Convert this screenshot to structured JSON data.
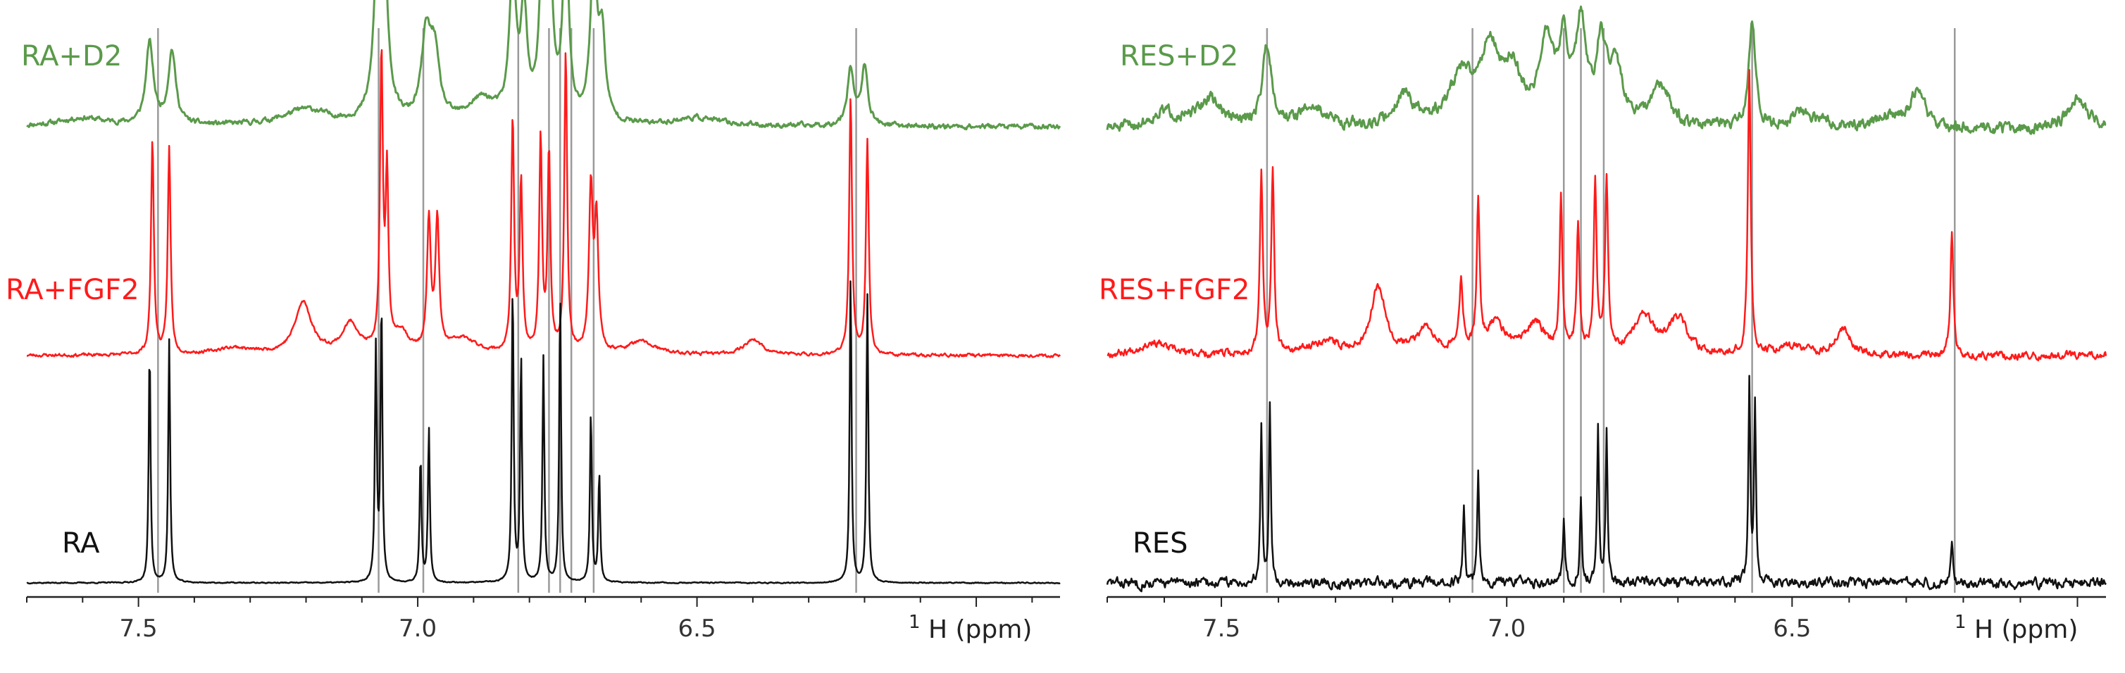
{
  "colors": {
    "D2": "#5a9a4a",
    "FGF2": "#ff1a1a",
    "free": "#111111",
    "guide": "#9a9a9a",
    "axis": "#222222"
  },
  "chart_data": [
    {
      "type": "line",
      "panel": "left",
      "xlabel_nucleus": "1",
      "xlabel_text": "H (ppm)",
      "xlim": [
        7.7,
        5.85
      ],
      "reverse_x": true,
      "ticks": [
        7.5,
        7.0,
        6.5
      ],
      "tick_labels": [
        "7.5",
        "7.0",
        "6.5"
      ],
      "guides": [
        7.465,
        7.07,
        6.99,
        6.82,
        6.765,
        6.745,
        6.725,
        6.685,
        6.215
      ],
      "series": [
        {
          "name": "RA+D2",
          "color": "#5a9a4a",
          "linewidth": 3,
          "baseline": 0.5,
          "scale": 0.9,
          "noise": 0.02,
          "seed": 11,
          "peaks": [
            [
              7.48,
              1.0,
              0.008
            ],
            [
              7.44,
              0.9,
              0.008
            ],
            [
              7.07,
              2.4,
              0.008
            ],
            [
              7.06,
              1.5,
              0.008
            ],
            [
              6.985,
              1.0,
              0.01
            ],
            [
              6.97,
              0.8,
              0.01
            ],
            [
              6.885,
              0.3,
              0.03
            ],
            [
              6.83,
              1.8,
              0.007
            ],
            [
              6.81,
              1.3,
              0.007
            ],
            [
              6.775,
              2.6,
              0.006
            ],
            [
              6.765,
              2.3,
              0.006
            ],
            [
              6.735,
              2.4,
              0.006
            ],
            [
              6.685,
              2.0,
              0.007
            ],
            [
              6.67,
              1.0,
              0.007
            ],
            [
              6.225,
              0.7,
              0.007
            ],
            [
              6.2,
              0.7,
              0.007
            ],
            [
              7.2,
              0.2,
              0.05
            ],
            [
              7.6,
              0.1,
              0.05
            ],
            [
              6.5,
              0.1,
              0.05
            ]
          ]
        },
        {
          "name": "RA+FGF2",
          "color": "#ff1a1a",
          "linewidth": 2.5,
          "baseline": 2.35,
          "scale": 0.95,
          "noise": 0.012,
          "seed": 23,
          "peaks": [
            [
              7.475,
              2.5,
              0.003
            ],
            [
              7.445,
              2.4,
              0.003
            ],
            [
              7.065,
              3.4,
              0.003
            ],
            [
              7.055,
              2.0,
              0.003
            ],
            [
              6.98,
              1.5,
              0.004
            ],
            [
              6.965,
              1.5,
              0.004
            ],
            [
              6.83,
              2.7,
              0.003
            ],
            [
              6.815,
              2.0,
              0.003
            ],
            [
              6.78,
              2.5,
              0.003
            ],
            [
              6.765,
              2.3,
              0.003
            ],
            [
              6.735,
              3.5,
              0.003
            ],
            [
              6.69,
              1.9,
              0.004
            ],
            [
              6.68,
              1.5,
              0.004
            ],
            [
              6.225,
              3.0,
              0.003
            ],
            [
              6.195,
              2.5,
              0.003
            ],
            [
              7.205,
              0.6,
              0.018
            ],
            [
              7.12,
              0.35,
              0.018
            ],
            [
              7.03,
              0.25,
              0.015
            ],
            [
              6.92,
              0.18,
              0.03
            ],
            [
              6.6,
              0.15,
              0.03
            ],
            [
              6.4,
              0.18,
              0.02
            ],
            [
              7.33,
              0.08,
              0.04
            ]
          ]
        },
        {
          "name": "RA",
          "color": "#111111",
          "linewidth": 2.5,
          "baseline": 4.05,
          "scale": 1.0,
          "noise": 0.004,
          "seed": 37,
          "peaks": [
            [
              7.48,
              2.6,
              0.002
            ],
            [
              7.445,
              2.7,
              0.002
            ],
            [
              7.075,
              2.6,
              0.002
            ],
            [
              7.065,
              3.1,
              0.002
            ],
            [
              6.995,
              1.4,
              0.002
            ],
            [
              6.98,
              1.7,
              0.002
            ],
            [
              6.83,
              3.3,
              0.002
            ],
            [
              6.815,
              2.5,
              0.002
            ],
            [
              6.775,
              2.5,
              0.002
            ],
            [
              6.745,
              3.2,
              0.002
            ],
            [
              6.69,
              1.9,
              0.002
            ],
            [
              6.675,
              1.2,
              0.002
            ],
            [
              6.225,
              3.4,
              0.002
            ],
            [
              6.195,
              3.2,
              0.002
            ]
          ]
        }
      ]
    },
    {
      "type": "line",
      "panel": "right",
      "xlabel_nucleus": "1",
      "xlabel_text": "H (ppm)",
      "xlim": [
        7.7,
        5.95
      ],
      "reverse_x": true,
      "ticks": [
        7.5,
        7.0,
        6.5
      ],
      "tick_labels": [
        "7.5",
        "7.0",
        "6.5"
      ],
      "guides": [
        7.42,
        7.06,
        6.9,
        6.87,
        6.83,
        6.57,
        6.215
      ],
      "series": [
        {
          "name": "RES+D2",
          "color": "#5a9a4a",
          "linewidth": 3,
          "baseline": 0.5,
          "scale": 0.9,
          "noise": 0.045,
          "seed": 51,
          "peaks": [
            [
              7.42,
              1.0,
              0.01
            ],
            [
              7.6,
              0.2,
              0.03
            ],
            [
              7.52,
              0.35,
              0.025
            ],
            [
              7.34,
              0.25,
              0.03
            ],
            [
              7.18,
              0.4,
              0.02
            ],
            [
              7.08,
              0.6,
              0.025
            ],
            [
              7.03,
              0.9,
              0.02
            ],
            [
              6.99,
              0.6,
              0.02
            ],
            [
              6.93,
              1.0,
              0.015
            ],
            [
              6.9,
              0.9,
              0.01
            ],
            [
              6.87,
              1.2,
              0.01
            ],
            [
              6.835,
              0.9,
              0.01
            ],
            [
              6.81,
              0.7,
              0.015
            ],
            [
              6.73,
              0.5,
              0.02
            ],
            [
              6.57,
              1.3,
              0.007
            ],
            [
              6.48,
              0.2,
              0.03
            ],
            [
              6.33,
              0.15,
              0.03
            ],
            [
              6.28,
              0.45,
              0.015
            ],
            [
              6.0,
              0.4,
              0.02
            ]
          ]
        },
        {
          "name": "RES+FGF2",
          "color": "#ff1a1a",
          "linewidth": 2.5,
          "baseline": 2.35,
          "scale": 0.95,
          "noise": 0.028,
          "seed": 67,
          "peaks": [
            [
              7.43,
              2.1,
              0.003
            ],
            [
              7.41,
              2.1,
              0.003
            ],
            [
              7.225,
              0.8,
              0.015
            ],
            [
              7.14,
              0.3,
              0.02
            ],
            [
              7.08,
              0.8,
              0.004
            ],
            [
              7.05,
              1.7,
              0.003
            ],
            [
              7.02,
              0.35,
              0.02
            ],
            [
              6.95,
              0.35,
              0.02
            ],
            [
              6.905,
              1.8,
              0.003
            ],
            [
              6.875,
              1.5,
              0.003
            ],
            [
              6.845,
              2.0,
              0.003
            ],
            [
              6.825,
              2.0,
              0.003
            ],
            [
              6.76,
              0.45,
              0.02
            ],
            [
              6.7,
              0.4,
              0.02
            ],
            [
              6.575,
              3.3,
              0.003
            ],
            [
              6.41,
              0.3,
              0.015
            ],
            [
              6.22,
              1.4,
              0.003
            ],
            [
              7.62,
              0.15,
              0.03
            ],
            [
              7.32,
              0.15,
              0.03
            ],
            [
              6.5,
              0.1,
              0.03
            ]
          ]
        },
        {
          "name": "RES",
          "color": "#111111",
          "linewidth": 2.5,
          "baseline": 4.05,
          "scale": 1.0,
          "noise": 0.035,
          "seed": 83,
          "peaks": [
            [
              7.43,
              1.8,
              0.002
            ],
            [
              7.415,
              2.0,
              0.002
            ],
            [
              7.075,
              0.9,
              0.002
            ],
            [
              7.05,
              1.3,
              0.002
            ],
            [
              6.9,
              0.7,
              0.002
            ],
            [
              6.87,
              0.9,
              0.002
            ],
            [
              6.84,
              1.7,
              0.002
            ],
            [
              6.825,
              1.7,
              0.002
            ],
            [
              6.575,
              2.2,
              0.002
            ],
            [
              6.565,
              2.0,
              0.002
            ],
            [
              6.22,
              0.5,
              0.002
            ]
          ]
        }
      ]
    }
  ]
}
